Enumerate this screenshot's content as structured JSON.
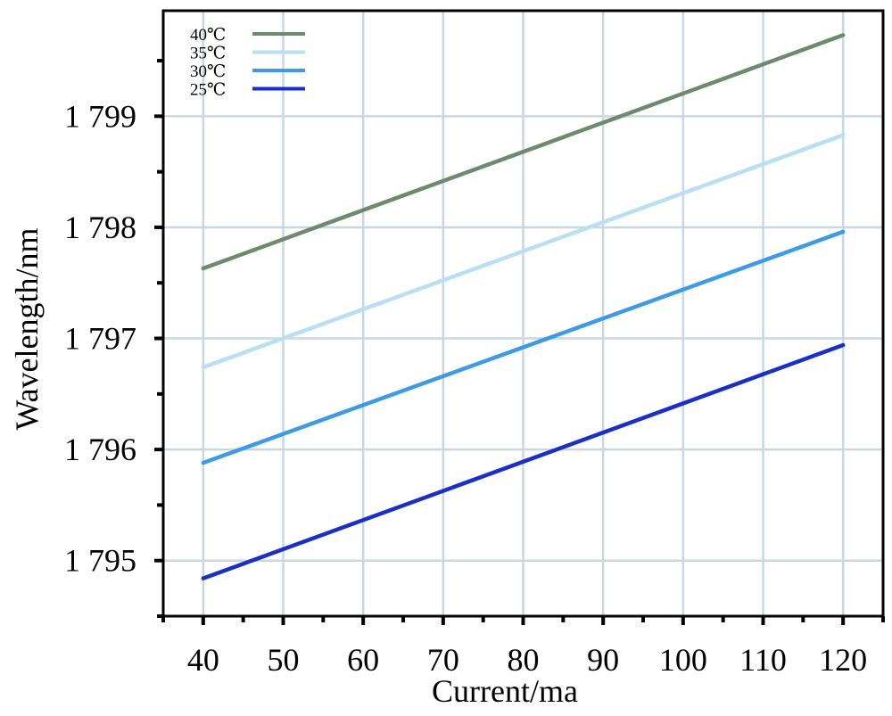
{
  "chart_data": {
    "type": "line",
    "title": "",
    "xlabel": "Current/ma",
    "ylabel": "Wavelength/nm",
    "xlim": [
      35,
      125
    ],
    "ylim": [
      1794.5,
      1799.95
    ],
    "x_ticks": [
      40,
      50,
      60,
      70,
      80,
      90,
      100,
      110,
      120
    ],
    "x_tick_labels": [
      "40",
      "50",
      "60",
      "70",
      "80",
      "90",
      "100",
      "110",
      "120"
    ],
    "y_ticks": [
      1795,
      1796,
      1797,
      1798,
      1799
    ],
    "y_tick_labels": [
      "1 795",
      "1 796",
      "1 797",
      "1 798",
      "1 799"
    ],
    "grid": true,
    "legend_position": "top-left",
    "series": [
      {
        "name": "40℃",
        "color": "#6e8a6e",
        "x": [
          40,
          120
        ],
        "y": [
          1797.63,
          1799.73
        ]
      },
      {
        "name": "35℃",
        "color": "#b9e0f2",
        "x": [
          40,
          120
        ],
        "y": [
          1796.74,
          1798.83
        ]
      },
      {
        "name": "30℃",
        "color": "#3d9be6",
        "x": [
          40,
          120
        ],
        "y": [
          1795.88,
          1797.96
        ]
      },
      {
        "name": "25℃",
        "color": "#1a2fc4",
        "x": [
          40,
          120
        ],
        "y": [
          1794.84,
          1796.94
        ]
      }
    ]
  }
}
